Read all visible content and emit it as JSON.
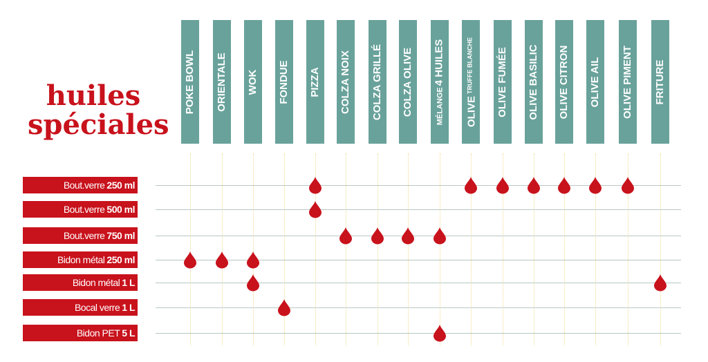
{
  "title": {
    "line1": "huiles",
    "line2": "spéciales"
  },
  "columns": [
    {
      "label": "POKE BOWL"
    },
    {
      "label": "ORIENTALE"
    },
    {
      "label": "WOK"
    },
    {
      "label": "FONDUE"
    },
    {
      "label": "PIZZA"
    },
    {
      "label": "COLZA NOIX"
    },
    {
      "label": "COLZA GRILLÉ"
    },
    {
      "label": "COLZA OLIVE"
    },
    {
      "label": "4 HUILES",
      "prefix": "MÉLANGE"
    },
    {
      "label": "OLIVE",
      "suffix": "TRUFFE BLANCHE"
    },
    {
      "label": "OLIVE FUMÉE"
    },
    {
      "label": "OLIVE BASILIC"
    },
    {
      "label": "OLIVE CITRON"
    },
    {
      "label": "OLIVE AIL"
    },
    {
      "label": "OLIVE PIMENT"
    },
    {
      "label": "FRITURE"
    }
  ],
  "rows": [
    {
      "name": "Bout.verre",
      "size": "250 ml"
    },
    {
      "name": "Bout.verre",
      "size": "500 ml"
    },
    {
      "name": "Bout.verre",
      "size": "750 ml"
    },
    {
      "name": "Bidon métal",
      "size": "250 ml"
    },
    {
      "name": "Bidon métal",
      "size": "1 L"
    },
    {
      "name": "Bocal  verre",
      "size": "1 L"
    },
    {
      "name": "Bidon PET",
      "size": "5 L"
    }
  ],
  "availability": [
    {
      "row": 0,
      "columns": [
        4,
        9,
        10,
        11,
        12,
        13,
        14
      ]
    },
    {
      "row": 1,
      "columns": [
        4
      ]
    },
    {
      "row": 2,
      "columns": [
        5,
        6,
        7,
        8
      ]
    },
    {
      "row": 3,
      "columns": [
        0,
        1,
        2
      ]
    },
    {
      "row": 4,
      "columns": [
        2,
        15
      ]
    },
    {
      "row": 5,
      "columns": [
        3
      ]
    },
    {
      "row": 6,
      "columns": [
        8
      ]
    }
  ],
  "colors": {
    "accent": "#c8121c",
    "header": "#69a29b",
    "drop": "#c8121c"
  },
  "icon": "oil-drop-icon"
}
